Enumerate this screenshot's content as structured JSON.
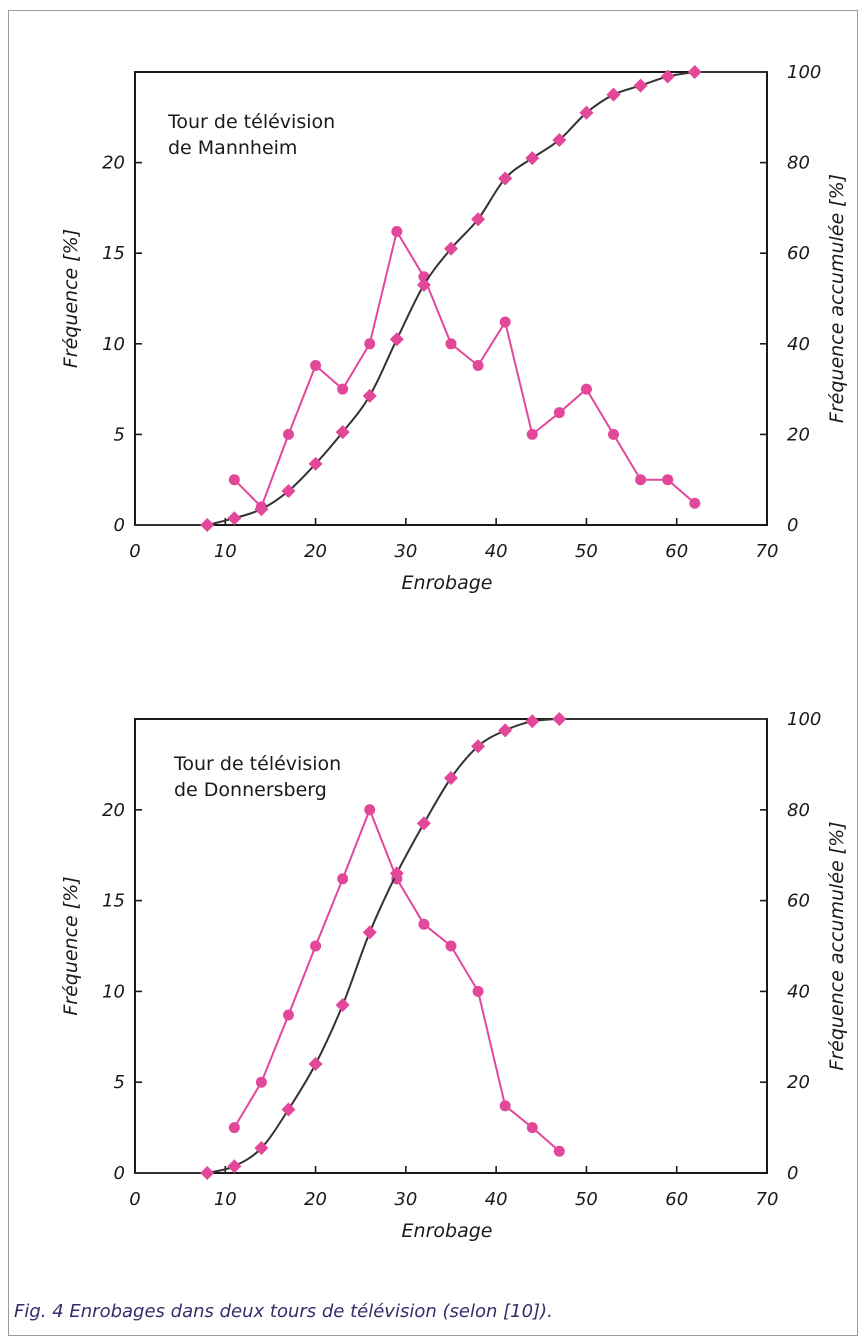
{
  "caption": "Fig. 4   Enrobages dans deux tours de télévision (selon [10]).",
  "colors": {
    "frequency": "#e2479a",
    "cumulative": "#333333",
    "axes": "#1a1a1a"
  },
  "chart_data": [
    {
      "type": "line",
      "title": "Tour de télévision",
      "subtitle": "de Mannheim",
      "xlabel": "Enrobage",
      "ylabel": "Fréquence [%]",
      "ylabel_right": "Fréquence accumulée [%]",
      "xlim": [
        0,
        70
      ],
      "ylim": [
        0,
        25
      ],
      "ylim_right": [
        0,
        100
      ],
      "xticks": [
        0,
        10,
        20,
        30,
        40,
        50,
        60,
        70
      ],
      "yticks": [
        0,
        5,
        10,
        15,
        20
      ],
      "yticks_right": [
        0,
        20,
        40,
        60,
        80,
        100
      ],
      "grid": false,
      "series": [
        {
          "axis": "left",
          "marker": "circle",
          "x": [
            11,
            14,
            17,
            20,
            23,
            26,
            29,
            32,
            35,
            38,
            41,
            44,
            47,
            50,
            53,
            56,
            59,
            62
          ],
          "values": [
            2.5,
            1.0,
            5.0,
            8.8,
            7.5,
            10.0,
            16.2,
            13.7,
            10.0,
            8.8,
            11.2,
            5.0,
            6.2,
            7.5,
            5.0,
            2.5,
            2.5,
            1.2
          ]
        },
        {
          "axis": "right",
          "marker": "diamond",
          "x": [
            8,
            11,
            14,
            17,
            20,
            23,
            26,
            29,
            32,
            35,
            38,
            41,
            44,
            47,
            50,
            53,
            56,
            59,
            62
          ],
          "values": [
            0,
            1.5,
            3.5,
            7.5,
            13.5,
            20.5,
            28.5,
            41.0,
            53.0,
            61.0,
            67.5,
            76.5,
            81.0,
            85.0,
            91.0,
            95.0,
            97.0,
            99.0,
            100.0
          ]
        }
      ]
    },
    {
      "type": "line",
      "title": "Tour de télévision",
      "subtitle": "de Donnersberg",
      "xlabel": "Enrobage",
      "ylabel": "Fréquence [%]",
      "ylabel_right": "Fréquence accumulée [%]",
      "xlim": [
        0,
        70
      ],
      "ylim": [
        0,
        25
      ],
      "ylim_right": [
        0,
        100
      ],
      "xticks": [
        0,
        10,
        20,
        30,
        40,
        50,
        60,
        70
      ],
      "yticks": [
        0,
        5,
        10,
        15,
        20
      ],
      "yticks_right": [
        0,
        20,
        40,
        60,
        80,
        100
      ],
      "grid": false,
      "series": [
        {
          "axis": "left",
          "marker": "circle",
          "x": [
            11,
            14,
            17,
            20,
            23,
            26,
            29,
            32,
            35,
            38,
            41,
            44,
            47
          ],
          "values": [
            2.5,
            5.0,
            8.7,
            12.5,
            16.2,
            20.0,
            16.2,
            13.7,
            12.5,
            10.0,
            3.7,
            2.5,
            1.2
          ]
        },
        {
          "axis": "right",
          "marker": "diamond",
          "x": [
            8,
            11,
            14,
            17,
            20,
            23,
            26,
            29,
            32,
            35,
            38,
            41,
            44,
            47
          ],
          "values": [
            0,
            1.5,
            5.5,
            14.0,
            24.0,
            37.0,
            53.0,
            66.0,
            77.0,
            87.0,
            94.0,
            97.5,
            99.5,
            100.0
          ]
        }
      ]
    }
  ]
}
